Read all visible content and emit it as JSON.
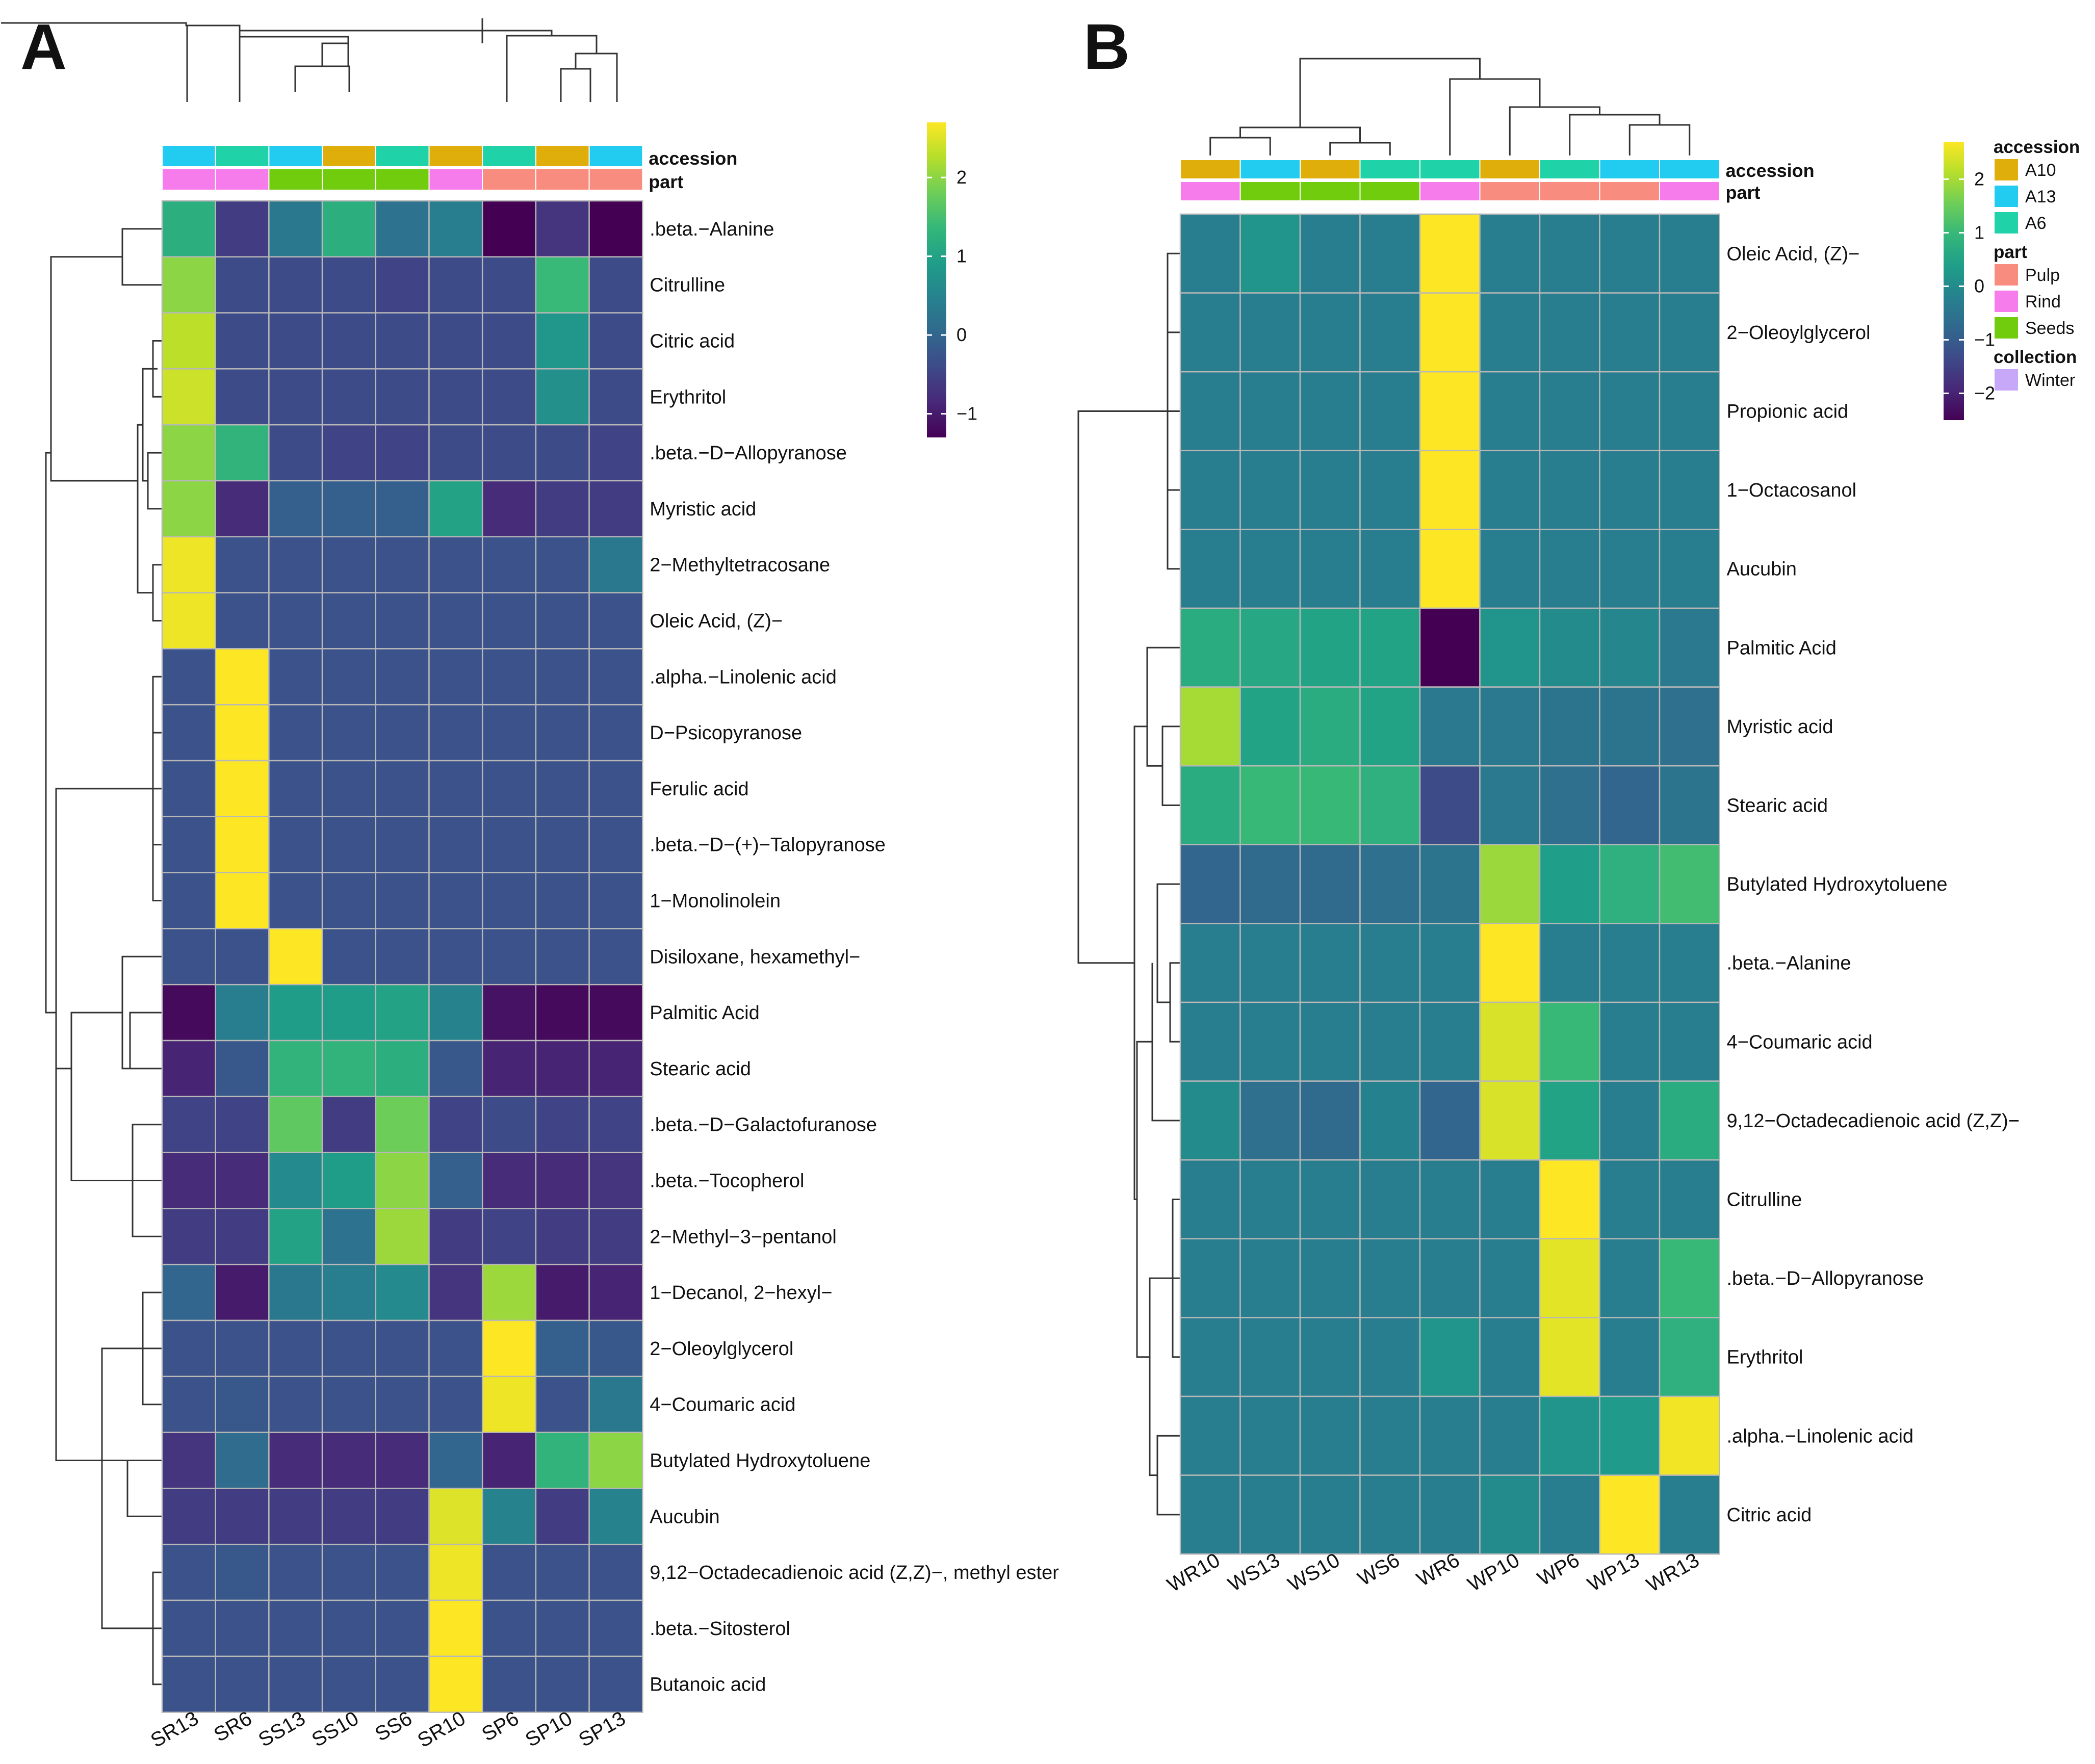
{
  "chart_data": [
    {
      "type": "heatmap",
      "panel": "A",
      "columns": [
        "SR13",
        "SR6",
        "SS13",
        "SS10",
        "SS6",
        "SR10",
        "SP6",
        "SP10",
        "SP13"
      ],
      "rows": [
        ".beta.−Alanine",
        "Citrulline",
        "Citric acid",
        "Erythritol",
        ".beta.−D−Allopyranose",
        "Myristic acid",
        "2−Methyltetracosane",
        "Oleic Acid, (Z)−",
        ".alpha.−Linolenic acid",
        "D−Psicopyranose",
        "Ferulic acid",
        ".beta.−D−(+)−Talopyranose",
        "1−Monolinolein",
        "Disiloxane, hexamethyl−",
        "Palmitic Acid",
        "Stearic acid",
        ".beta.−D−Galactofuranose",
        ".beta.−Tocopherol",
        "2−Methyl−3−pentanol",
        "1−Decanol, 2−hexyl−",
        "2−Oleoylglycerol",
        "4−Coumaric acid",
        "Butylated Hydroxytoluene",
        "Aucubin",
        "9,12−Octadecadienoic acid (Z,Z)−, methyl ester",
        ".beta.−Sitosterol",
        "Butanoic acid"
      ],
      "values": [
        [
          1.2,
          -0.6,
          0.3,
          1.2,
          0.2,
          0.4,
          -1.3,
          -0.7,
          -1.3
        ],
        [
          2.0,
          -0.4,
          -0.4,
          -0.4,
          -0.5,
          -0.4,
          -0.4,
          1.4,
          -0.4
        ],
        [
          2.3,
          -0.4,
          -0.4,
          -0.4,
          -0.4,
          -0.4,
          -0.4,
          0.8,
          -0.4
        ],
        [
          2.4,
          -0.4,
          -0.4,
          -0.4,
          -0.4,
          -0.4,
          -0.4,
          0.7,
          -0.4
        ],
        [
          2.0,
          1.3,
          -0.4,
          -0.5,
          -0.5,
          -0.4,
          -0.4,
          -0.4,
          -0.5
        ],
        [
          2.0,
          -0.8,
          -0.1,
          -0.1,
          -0.1,
          1.0,
          -0.8,
          -0.6,
          -0.6
        ],
        [
          2.6,
          -0.3,
          -0.3,
          -0.3,
          -0.3,
          -0.3,
          -0.3,
          -0.3,
          0.3
        ],
        [
          2.6,
          -0.3,
          -0.3,
          -0.3,
          -0.3,
          -0.3,
          -0.3,
          -0.3,
          -0.3
        ],
        [
          -0.3,
          2.7,
          -0.3,
          -0.3,
          -0.3,
          -0.3,
          -0.3,
          -0.3,
          -0.3
        ],
        [
          -0.3,
          2.7,
          -0.3,
          -0.3,
          -0.3,
          -0.3,
          -0.3,
          -0.3,
          -0.3
        ],
        [
          -0.3,
          2.7,
          -0.3,
          -0.3,
          -0.3,
          -0.3,
          -0.3,
          -0.3,
          -0.3
        ],
        [
          -0.3,
          2.7,
          -0.3,
          -0.3,
          -0.3,
          -0.3,
          -0.3,
          -0.3,
          -0.3
        ],
        [
          -0.3,
          2.7,
          -0.3,
          -0.3,
          -0.3,
          -0.3,
          -0.3,
          -0.3,
          -0.3
        ],
        [
          -0.3,
          -0.3,
          2.7,
          -0.3,
          -0.3,
          -0.3,
          -0.3,
          -0.3,
          -0.3
        ],
        [
          -1.2,
          0.4,
          0.9,
          0.9,
          1.0,
          0.5,
          -1.1,
          -1.2,
          -1.2
        ],
        [
          -0.9,
          -0.2,
          1.3,
          1.3,
          1.2,
          -0.2,
          -0.9,
          -0.9,
          -0.9
        ],
        [
          -0.5,
          -0.5,
          1.7,
          -0.6,
          1.8,
          -0.5,
          -0.4,
          -0.5,
          -0.5
        ],
        [
          -0.8,
          -0.8,
          0.6,
          0.9,
          2.0,
          -0.1,
          -0.8,
          -0.8,
          -0.7
        ],
        [
          -0.6,
          -0.6,
          1.0,
          0.2,
          2.1,
          -0.6,
          -0.5,
          -0.6,
          -0.6
        ],
        [
          0.0,
          -1.0,
          0.3,
          0.4,
          0.6,
          -0.7,
          2.1,
          -1.0,
          -0.9
        ],
        [
          -0.3,
          -0.3,
          -0.3,
          -0.3,
          -0.3,
          -0.3,
          2.7,
          -0.1,
          -0.2
        ],
        [
          -0.3,
          -0.2,
          -0.3,
          -0.3,
          -0.3,
          -0.3,
          2.6,
          -0.3,
          0.3
        ],
        [
          -0.7,
          0.1,
          -0.8,
          -0.8,
          -0.8,
          0.0,
          -0.9,
          1.3,
          2.0
        ],
        [
          -0.6,
          -0.6,
          -0.6,
          -0.6,
          -0.6,
          2.5,
          0.5,
          -0.6,
          0.5
        ],
        [
          -0.3,
          -0.2,
          -0.3,
          -0.3,
          -0.3,
          2.6,
          -0.3,
          -0.3,
          -0.3
        ],
        [
          -0.3,
          -0.3,
          -0.3,
          -0.3,
          -0.3,
          2.7,
          -0.3,
          -0.3,
          -0.3
        ],
        [
          -0.3,
          -0.3,
          -0.3,
          -0.3,
          -0.3,
          2.7,
          -0.3,
          -0.3,
          -0.3
        ]
      ],
      "annotations": {
        "accession": [
          "A13",
          "A6",
          "A13",
          "A10",
          "A6",
          "A10",
          "A6",
          "A10",
          "A13"
        ],
        "part": [
          "Rind",
          "Rind",
          "Seeds",
          "Seeds",
          "Seeds",
          "Rind",
          "Pulp",
          "Pulp",
          "Pulp"
        ]
      },
      "annotation_labels": {
        "accession": "accession",
        "part": "part"
      },
      "colorbar": {
        "range": [
          -1.3,
          2.7
        ],
        "ticks": [
          "2",
          "1",
          "0",
          "−1"
        ]
      }
    },
    {
      "type": "heatmap",
      "panel": "B",
      "columns": [
        "WR10",
        "WS13",
        "WS10",
        "WS6",
        "WR6",
        "WP10",
        "WP6",
        "WP13",
        "WR13"
      ],
      "rows": [
        "Oleic Acid, (Z)−",
        "2−Oleoylglycerol",
        "Propionic acid",
        "1−Octacosanol",
        "Aucubin",
        "Palmitic Acid",
        "Myristic acid",
        "Stearic acid",
        "Butylated Hydroxytoluene",
        ".beta.−Alanine",
        "4−Coumaric acid",
        "9,12−Octadecadienoic acid (Z,Z)−",
        "Citrulline",
        ".beta.−D−Allopyranose",
        "Erythritol",
        ".alpha.−Linolenic acid",
        "Citric acid"
      ],
      "values": [
        [
          -0.3,
          0.2,
          -0.3,
          -0.3,
          2.7,
          -0.3,
          -0.3,
          -0.3,
          -0.3
        ],
        [
          -0.3,
          -0.3,
          -0.3,
          -0.3,
          2.7,
          -0.3,
          -0.3,
          -0.3,
          -0.3
        ],
        [
          -0.3,
          -0.3,
          -0.3,
          -0.3,
          2.7,
          -0.3,
          -0.3,
          -0.3,
          -0.3
        ],
        [
          -0.3,
          -0.3,
          -0.3,
          -0.3,
          2.7,
          -0.3,
          -0.3,
          -0.3,
          -0.3
        ],
        [
          -0.3,
          -0.3,
          -0.3,
          -0.3,
          2.7,
          -0.3,
          -0.3,
          -0.3,
          -0.3
        ],
        [
          0.7,
          0.6,
          0.5,
          0.5,
          -2.5,
          0.2,
          0.0,
          -0.1,
          -0.4
        ],
        [
          2.0,
          0.5,
          0.7,
          0.5,
          -0.4,
          -0.4,
          -0.5,
          -0.5,
          -0.6
        ],
        [
          0.7,
          1.0,
          1.0,
          0.8,
          -1.3,
          -0.4,
          -0.6,
          -0.8,
          -0.5
        ],
        [
          -0.8,
          -0.7,
          -0.7,
          -0.6,
          -0.5,
          1.9,
          0.4,
          0.8,
          1.1
        ],
        [
          -0.3,
          -0.3,
          -0.3,
          -0.3,
          -0.3,
          2.7,
          -0.3,
          -0.3,
          -0.3
        ],
        [
          -0.3,
          -0.3,
          -0.3,
          -0.3,
          -0.3,
          2.4,
          1.0,
          -0.3,
          -0.3
        ],
        [
          0.0,
          -0.6,
          -0.7,
          -0.2,
          -0.8,
          2.4,
          0.5,
          -0.3,
          0.7
        ],
        [
          -0.3,
          -0.3,
          -0.3,
          -0.3,
          -0.3,
          -0.3,
          2.7,
          -0.3,
          -0.3
        ],
        [
          -0.3,
          -0.3,
          -0.3,
          -0.3,
          -0.3,
          -0.3,
          2.5,
          -0.3,
          1.0
        ],
        [
          -0.3,
          -0.3,
          -0.3,
          -0.3,
          0.2,
          -0.3,
          2.5,
          -0.3,
          0.8
        ],
        [
          -0.3,
          -0.3,
          -0.3,
          -0.3,
          -0.3,
          -0.3,
          0.2,
          0.3,
          2.6
        ],
        [
          -0.3,
          -0.3,
          -0.3,
          -0.3,
          -0.3,
          0.0,
          -0.3,
          2.7,
          -0.3
        ]
      ],
      "annotations": {
        "accession": [
          "A10",
          "A13",
          "A10",
          "A6",
          "A6",
          "A10",
          "A6",
          "A13",
          "A13"
        ],
        "part": [
          "Rind",
          "Seeds",
          "Seeds",
          "Seeds",
          "Rind",
          "Pulp",
          "Pulp",
          "Pulp",
          "Rind"
        ]
      },
      "annotation_labels": {
        "accession": "accession",
        "part": "part"
      },
      "colorbar": {
        "range": [
          -2.5,
          2.7
        ],
        "ticks": [
          "2",
          "1",
          "0",
          "−1",
          "−2"
        ]
      },
      "legend": [
        {
          "title": "accession",
          "items": [
            {
              "label": "A10",
              "color": "#E0AE0A"
            },
            {
              "label": "A13",
              "color": "#22CCF0"
            },
            {
              "label": "A6",
              "color": "#1FD2A8"
            }
          ]
        },
        {
          "title": "part",
          "items": [
            {
              "label": "Pulp",
              "color": "#F88C7E"
            },
            {
              "label": "Rind",
              "color": "#F77CEB"
            },
            {
              "label": "Seeds",
              "color": "#72CC0E"
            }
          ]
        },
        {
          "title": "collection",
          "items": [
            {
              "label": "Winter",
              "color": "#C7A7F8"
            }
          ]
        }
      ]
    }
  ],
  "annotation_colors": {
    "A10": "#E0AE0A",
    "A13": "#22CCF0",
    "A6": "#1FD2A8",
    "Pulp": "#F88C7E",
    "Rind": "#F77CEB",
    "Seeds": "#72CC0E"
  },
  "panel_labels": {
    "a": "A",
    "b": "B"
  }
}
